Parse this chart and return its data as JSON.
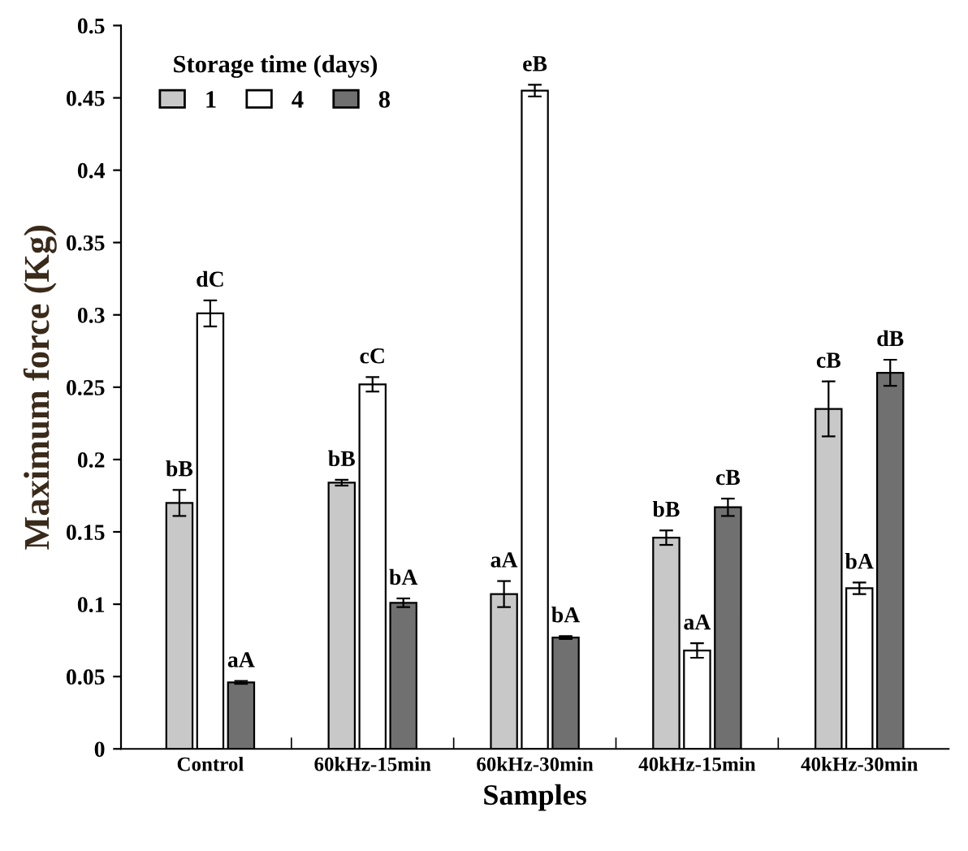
{
  "chart_data": {
    "type": "bar",
    "xlabel": "Samples",
    "ylabel": "Maximum force (Kg)",
    "legend_title": "Storage time (days)",
    "legend": "top left",
    "grid": false,
    "categories": [
      "Control",
      "60kHz-15min",
      "60kHz-30min",
      "40kHz-15min",
      "40kHz-30min"
    ],
    "ylim": [
      0,
      0.5
    ],
    "yticks": [
      0,
      0.05,
      0.1,
      0.15,
      0.2,
      0.25,
      0.3,
      0.35,
      0.4,
      0.45,
      0.5
    ],
    "series": [
      {
        "name": "1",
        "color": "#c8c8c8",
        "values": [
          0.17,
          0.184,
          0.107,
          0.146,
          0.235
        ],
        "errors": [
          0.009,
          0.002,
          0.009,
          0.005,
          0.019
        ],
        "value_labels": [
          "bB",
          "bB",
          "aA",
          "bB",
          "cB"
        ]
      },
      {
        "name": "4",
        "color": "#ffffff",
        "values": [
          0.301,
          0.252,
          0.455,
          0.068,
          0.111
        ],
        "errors": [
          0.009,
          0.005,
          0.004,
          0.005,
          0.004
        ],
        "value_labels": [
          "dC",
          "cC",
          "eB",
          "aA",
          "bA"
        ]
      },
      {
        "name": "8",
        "color": "#707070",
        "values": [
          0.046,
          0.101,
          0.077,
          0.167,
          0.26
        ],
        "errors": [
          0.001,
          0.003,
          0.001,
          0.006,
          0.009
        ],
        "value_labels": [
          "aA",
          "bA",
          "bA",
          "cB",
          "dB"
        ]
      }
    ]
  }
}
